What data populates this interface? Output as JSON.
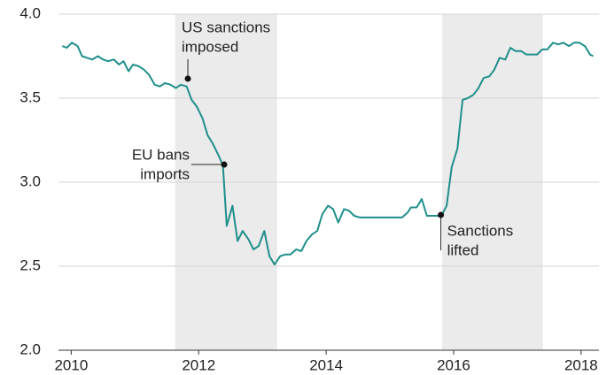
{
  "chart_data": {
    "type": "line",
    "xlim": [
      2009.8,
      2018.28
    ],
    "ylim": [
      2.0,
      4.0
    ],
    "xticks": [
      2010,
      2012,
      2014,
      2016,
      2018
    ],
    "yticks": [
      {
        "value": 2,
        "label": "2.0"
      },
      {
        "value": 2.5,
        "label": "2.5"
      },
      {
        "value": 3,
        "label": "3.0"
      },
      {
        "value": 3.5,
        "label": "3.5"
      },
      {
        "value": 4,
        "label": "4.0"
      }
    ],
    "grid": true,
    "color": "#1f8f8c",
    "shaded_regions": [
      [
        2011.63,
        2013.23
      ],
      [
        2015.82,
        2017.4
      ]
    ],
    "shade_color": "#ebebeb",
    "x": [
      2009.86,
      2009.93,
      2010.01,
      2010.1,
      2010.17,
      2010.25,
      2010.33,
      2010.42,
      2010.5,
      2010.58,
      2010.67,
      2010.75,
      2010.82,
      2010.9,
      2010.97,
      2011.06,
      2011.14,
      2011.22,
      2011.31,
      2011.39,
      2011.47,
      2011.56,
      2011.64,
      2011.72,
      2011.81,
      2011.89,
      2011.97,
      2012.06,
      2012.14,
      2012.22,
      2012.31,
      2012.38,
      2012.44,
      2012.53,
      2012.61,
      2012.69,
      2012.78,
      2012.86,
      2012.94,
      2013.03,
      2013.11,
      2013.19,
      2013.28,
      2013.36,
      2013.44,
      2013.53,
      2013.61,
      2013.69,
      2013.78,
      2013.86,
      2013.94,
      2014.03,
      2014.11,
      2014.19,
      2014.28,
      2014.36,
      2014.44,
      2014.53,
      2014.61,
      2014.69,
      2014.78,
      2014.86,
      2014.94,
      2015.03,
      2015.11,
      2015.19,
      2015.28,
      2015.33,
      2015.42,
      2015.5,
      2015.58,
      2015.67,
      2015.75,
      2015.81,
      2015.89,
      2015.97,
      2016.06,
      2016.14,
      2016.22,
      2016.31,
      2016.39,
      2016.47,
      2016.56,
      2016.64,
      2016.72,
      2016.81,
      2016.89,
      2016.97,
      2017.06,
      2017.14,
      2017.22,
      2017.31,
      2017.39,
      2017.47,
      2017.56,
      2017.64,
      2017.72,
      2017.81,
      2017.89,
      2017.97,
      2018.06,
      2018.14,
      2018.19
    ],
    "values": [
      3.81,
      3.8,
      3.83,
      3.81,
      3.75,
      3.74,
      3.73,
      3.75,
      3.73,
      3.72,
      3.73,
      3.7,
      3.72,
      3.66,
      3.7,
      3.69,
      3.67,
      3.64,
      3.58,
      3.57,
      3.59,
      3.58,
      3.56,
      3.58,
      3.57,
      3.49,
      3.45,
      3.38,
      3.28,
      3.23,
      3.16,
      3.1,
      2.74,
      2.86,
      2.65,
      2.71,
      2.66,
      2.6,
      2.62,
      2.71,
      2.56,
      2.51,
      2.56,
      2.57,
      2.57,
      2.6,
      2.59,
      2.65,
      2.69,
      2.71,
      2.81,
      2.86,
      2.84,
      2.76,
      2.84,
      2.83,
      2.8,
      2.79,
      2.79,
      2.79,
      2.79,
      2.79,
      2.79,
      2.79,
      2.79,
      2.79,
      2.82,
      2.85,
      2.85,
      2.9,
      2.8,
      2.8,
      2.8,
      2.8,
      2.86,
      3.09,
      3.2,
      3.49,
      3.5,
      3.52,
      3.56,
      3.62,
      3.63,
      3.67,
      3.74,
      3.73,
      3.8,
      3.78,
      3.78,
      3.76,
      3.76,
      3.76,
      3.79,
      3.79,
      3.83,
      3.82,
      3.83,
      3.81,
      3.83,
      3.83,
      3.81,
      3.76,
      3.75
    ],
    "annotations": [
      {
        "text": [
          "US sanctions",
          "imposed"
        ],
        "x": 2011.83,
        "y": 3.616
      },
      {
        "text": [
          "EU bans",
          "imports"
        ],
        "x": 2012.4,
        "y": 3.105
      },
      {
        "text": [
          "Sanctions",
          "lifted"
        ],
        "x": 2015.8,
        "y": 2.805
      }
    ]
  }
}
